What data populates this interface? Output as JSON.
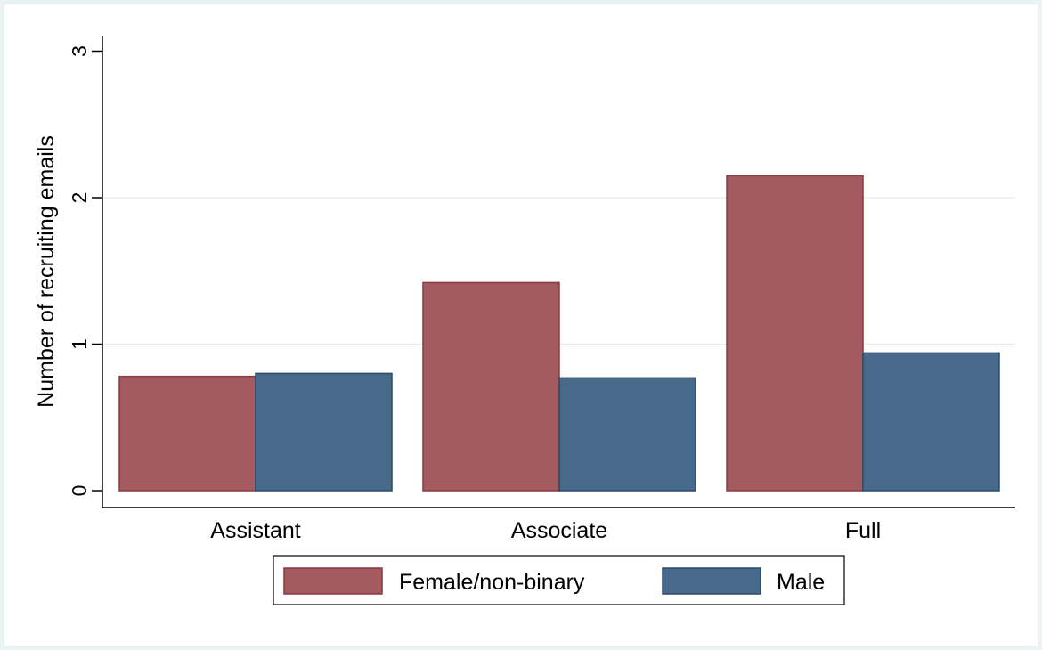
{
  "chart_data": {
    "type": "bar",
    "categories": [
      "Assistant",
      "Associate",
      "Full"
    ],
    "series": [
      {
        "name": "Female/non-binary",
        "values": [
          0.78,
          1.42,
          2.15
        ],
        "color": "#a35b5f",
        "stroke": "#8a3a40"
      },
      {
        "name": "Male",
        "values": [
          0.8,
          0.77,
          0.94
        ],
        "color": "#486a8a",
        "stroke": "#2c4a66"
      }
    ],
    "title": "",
    "xlabel": "",
    "ylabel": "Number of recruiting emails",
    "ylim": [
      0,
      3
    ],
    "yticks": [
      0,
      1,
      2,
      3
    ],
    "grid": true,
    "legend_position": "bottom"
  }
}
